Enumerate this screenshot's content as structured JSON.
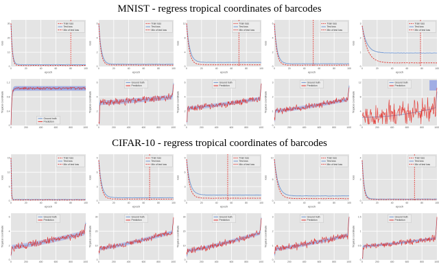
{
  "figure": {
    "sections": [
      {
        "title": "MNIST - regress tropical coordinates of barcodes"
      },
      {
        "title": "CIFAR-10 - regress tropical coordinates of barcodes"
      }
    ]
  },
  "colors": {
    "red": "#e3312b",
    "blue": "#6f96d2",
    "band": "#8f9fe3",
    "plot_bg": "#e4e4e4",
    "grid": "#ffffff",
    "tick_text": "#555555",
    "legend_bg": "#ececec",
    "legend_border": "#bbbbbb"
  },
  "legends": {
    "loss": [
      {
        "label": "Train loss",
        "color": "red",
        "dash": true
      },
      {
        "label": "Test loss",
        "color": "blue",
        "dash": false
      },
      {
        "label": "Min of test loss",
        "color": "red",
        "dash": true
      }
    ],
    "sorted": [
      {
        "label": "Ground truth",
        "color": "blue",
        "dash": false
      },
      {
        "label": "Prediction",
        "color": "red",
        "dash": false
      }
    ]
  },
  "axes": {
    "loss": {
      "xlabel": "epoch",
      "xticks": [
        0,
        20,
        40,
        60,
        80,
        100
      ]
    },
    "sorted": {
      "xlabel": "",
      "xticks": [
        0,
        200,
        400,
        600,
        800,
        1000
      ]
    }
  },
  "chart_data": {
    "type": "line",
    "description": "4 rows x 5 cols of line plots. Loss rows: train/test loss vs epoch with dashed vertical line at best test epoch. Sorted rows: ground-truth vs predicted tropical coordinates over sorted test samples.",
    "plots": [
      {
        "row": 0,
        "col": 0,
        "axis": "loss",
        "ylabel": "loss",
        "yticks": [
          0,
          10,
          20,
          30
        ],
        "legend": "loss",
        "legend_pos": "tr",
        "vline": 0.8,
        "series": [
          {
            "name": "Train loss",
            "shape": "decay",
            "start": 0.95,
            "end": 0.02,
            "k": 60
          },
          {
            "name": "Test loss",
            "shape": "decay",
            "start": 0.95,
            "end": 0.04,
            "k": 55
          }
        ]
      },
      {
        "row": 0,
        "col": 1,
        "axis": "loss",
        "ylabel": "loss",
        "yticks": [
          0,
          2,
          4,
          6
        ],
        "legend": "loss",
        "legend_pos": "tr",
        "vline": null,
        "series": [
          {
            "name": "Train loss",
            "shape": "decay",
            "start": 0.95,
            "end": 0.03,
            "k": 35
          },
          {
            "name": "Test loss",
            "shape": "decay",
            "start": 0.95,
            "end": 0.05,
            "k": 30
          }
        ]
      },
      {
        "row": 0,
        "col": 2,
        "axis": "loss",
        "ylabel": "loss",
        "yticks": [
          0,
          4,
          8,
          12
        ],
        "legend": "loss",
        "legend_pos": "tr",
        "vline": 0.7,
        "series": [
          {
            "name": "Train loss",
            "shape": "decay",
            "start": 0.95,
            "end": 0.04,
            "k": 28
          },
          {
            "name": "Test loss",
            "shape": "decay",
            "start": 0.95,
            "end": 0.09,
            "k": 24
          }
        ]
      },
      {
        "row": 0,
        "col": 3,
        "axis": "loss",
        "ylabel": "loss",
        "yticks": [
          0,
          2,
          4,
          6
        ],
        "legend": "loss",
        "legend_pos": "tr",
        "vline": 0.52,
        "series": [
          {
            "name": "Train loss",
            "shape": "decay",
            "start": 0.95,
            "end": 0.03,
            "k": 32
          },
          {
            "name": "Test loss",
            "shape": "decay",
            "start": 0.95,
            "end": 0.06,
            "k": 28
          }
        ]
      },
      {
        "row": 0,
        "col": 4,
        "axis": "loss",
        "ylabel": "loss",
        "yticks": [
          0,
          1,
          2,
          3
        ],
        "legend": "loss",
        "legend_pos": "tr",
        "vline": 0.78,
        "series": [
          {
            "name": "Train loss",
            "shape": "decay",
            "start": 0.9,
            "end": 0.08,
            "k": 14
          },
          {
            "name": "Test loss",
            "shape": "decay",
            "start": 0.9,
            "end": 0.3,
            "k": 16
          }
        ]
      },
      {
        "row": 1,
        "col": 0,
        "axis": "sorted",
        "ylabel": "Tropical coordinate",
        "yticks": [
          0,
          0.4,
          0.8,
          1.2
        ],
        "legend": "sorted",
        "legend_pos": "bc",
        "vline": null,
        "series": [
          {
            "name": "Prediction",
            "shape": "rise_flat",
            "top": 0.82,
            "k": 100,
            "band": 0.05,
            "amp": 0.025
          }
        ]
      },
      {
        "row": 1,
        "col": 1,
        "axis": "sorted",
        "ylabel": "Tropical coordinate",
        "yticks": [
          0,
          2,
          4,
          6
        ],
        "legend": "sorted",
        "legend_pos": "tc",
        "vline": null,
        "series": [
          {
            "name": "Prediction",
            "shape": "noisy_rise",
            "y0": 0.5,
            "y1": 0.63,
            "amp": 0.07,
            "dip": 0.45,
            "spike": 0.3,
            "band": 0.05
          }
        ]
      },
      {
        "row": 1,
        "col": 2,
        "axis": "sorted",
        "ylabel": "Tropical coordinate",
        "yticks": [
          0,
          2,
          4,
          6
        ],
        "legend": "sorted",
        "legend_pos": "tc",
        "vline": null,
        "series": [
          {
            "name": "Prediction",
            "shape": "noisy_rise",
            "y0": 0.38,
            "y1": 0.6,
            "amp": 0.06,
            "dip": 0.3,
            "spike": 0.32,
            "band": 0.04
          }
        ]
      },
      {
        "row": 1,
        "col": 3,
        "axis": "sorted",
        "ylabel": "Tropical coordinate",
        "yticks": [
          0,
          1,
          2,
          3
        ],
        "legend": "sorted",
        "legend_pos": "tc",
        "vline": null,
        "series": [
          {
            "name": "Prediction",
            "shape": "noisy_rise",
            "y0": 0.32,
            "y1": 0.58,
            "amp": 0.06,
            "dip": 0.2,
            "spike": 0.3,
            "band": 0.04
          }
        ]
      },
      {
        "row": 1,
        "col": 4,
        "axis": "sorted",
        "ylabel": "Tropical coordinate",
        "yticks": [
          0,
          4,
          8,
          12
        ],
        "legend": "sorted",
        "legend_pos": "tc",
        "vline": null,
        "series": [
          {
            "name": "Prediction",
            "shape": "spiky",
            "y0": 0.18,
            "y1": 0.4,
            "amp": 0.26,
            "endband": true
          }
        ]
      },
      {
        "row": 2,
        "col": 0,
        "axis": "loss",
        "ylabel": "loss",
        "yticks": [
          0,
          5,
          10,
          15
        ],
        "legend": "loss",
        "legend_pos": "tr",
        "vline": null,
        "series": [
          {
            "name": "Train loss",
            "shape": "decay",
            "start": 0.95,
            "end": 0.02,
            "k": 220
          },
          {
            "name": "Test loss",
            "shape": "decay",
            "start": 0.95,
            "end": 0.03,
            "k": 200
          }
        ]
      },
      {
        "row": 2,
        "col": 1,
        "axis": "loss",
        "ylabel": "loss",
        "yticks": [
          0,
          3,
          6,
          9
        ],
        "legend": "loss",
        "legend_pos": "tr",
        "vline": 0.68,
        "series": [
          {
            "name": "Train loss",
            "shape": "decay",
            "start": 0.9,
            "end": 0.04,
            "k": 30
          },
          {
            "name": "Test loss",
            "shape": "decay",
            "start": 0.9,
            "end": 0.07,
            "k": 26
          }
        ]
      },
      {
        "row": 2,
        "col": 2,
        "axis": "loss",
        "ylabel": "loss",
        "yticks": [
          0,
          3,
          6,
          9
        ],
        "legend": "loss",
        "legend_pos": "tr",
        "vline": 0.55,
        "series": [
          {
            "name": "Train loss",
            "shape": "decay",
            "start": 0.92,
            "end": 0.06,
            "k": 26
          },
          {
            "name": "Test loss",
            "shape": "decay",
            "start": 0.92,
            "end": 0.13,
            "k": 22
          }
        ]
      },
      {
        "row": 2,
        "col": 3,
        "axis": "loss",
        "ylabel": "loss",
        "yticks": [
          0,
          5,
          10
        ],
        "legend": "loss",
        "legend_pos": "tr",
        "vline": null,
        "series": [
          {
            "name": "Train loss",
            "shape": "decay",
            "start": 0.92,
            "end": 0.05,
            "k": 22
          },
          {
            "name": "Test loss",
            "shape": "decay",
            "start": 0.92,
            "end": 0.11,
            "k": 20
          }
        ]
      },
      {
        "row": 2,
        "col": 4,
        "axis": "loss",
        "ylabel": "loss",
        "yticks": [
          0,
          2,
          4
        ],
        "legend": "loss",
        "legend_pos": "tr",
        "vline": 0.7,
        "series": [
          {
            "name": "Train loss",
            "shape": "decay",
            "start": 0.9,
            "end": 0.03,
            "k": 45
          },
          {
            "name": "Test loss",
            "shape": "decay",
            "start": 0.9,
            "end": 0.04,
            "k": 40
          }
        ]
      },
      {
        "row": 3,
        "col": 0,
        "axis": "sorted",
        "ylabel": "Tropical coordinate",
        "yticks": [
          0,
          2,
          4,
          6
        ],
        "legend": "sorted",
        "legend_pos": "tc",
        "vline": null,
        "series": [
          {
            "name": "Prediction",
            "shape": "noisy_rise",
            "y0": 0.28,
            "y1": 0.6,
            "amp": 0.07,
            "dip": 0.15,
            "spike": 0.22,
            "band": 0.05
          }
        ]
      },
      {
        "row": 3,
        "col": 1,
        "axis": "sorted",
        "ylabel": "Tropical coordinate",
        "yticks": [
          0,
          10,
          20,
          30
        ],
        "legend": "sorted",
        "legend_pos": "tc",
        "vline": null,
        "series": [
          {
            "name": "Prediction",
            "shape": "noisy_rise",
            "y0": 0.25,
            "y1": 0.62,
            "amp": 0.06,
            "dip": 0.1,
            "spike": 0.3,
            "band": 0.04
          }
        ]
      },
      {
        "row": 3,
        "col": 2,
        "axis": "sorted",
        "ylabel": "Tropical coordinate",
        "yticks": [
          0,
          10,
          20,
          30
        ],
        "legend": "sorted",
        "legend_pos": "tc",
        "vline": null,
        "series": [
          {
            "name": "Prediction",
            "shape": "noisy_rise",
            "y0": 0.2,
            "y1": 0.6,
            "amp": 0.06,
            "dip": 0.1,
            "spike": 0.33,
            "band": 0.04
          }
        ]
      },
      {
        "row": 3,
        "col": 3,
        "axis": "sorted",
        "ylabel": "Tropical coordinate",
        "yticks": [
          0,
          1,
          2,
          3
        ],
        "legend": "sorted",
        "legend_pos": "tc",
        "vline": null,
        "series": [
          {
            "name": "Prediction",
            "shape": "noisy_rise",
            "y0": 0.24,
            "y1": 0.55,
            "amp": 0.07,
            "dip": 0.12,
            "spike": 0.4,
            "band": 0.04
          }
        ]
      },
      {
        "row": 3,
        "col": 4,
        "axis": "sorted",
        "ylabel": "Tropical coordinate",
        "yticks": [
          0,
          0.5,
          1,
          1.5
        ],
        "legend": "sorted",
        "legend_pos": "tc",
        "vline": null,
        "series": [
          {
            "name": "Prediction",
            "shape": "noisy_rise",
            "y0": 0.3,
            "y1": 0.48,
            "amp": 0.06,
            "dip": 0.28,
            "spike": 0.45,
            "band": 0.03
          }
        ]
      }
    ]
  }
}
